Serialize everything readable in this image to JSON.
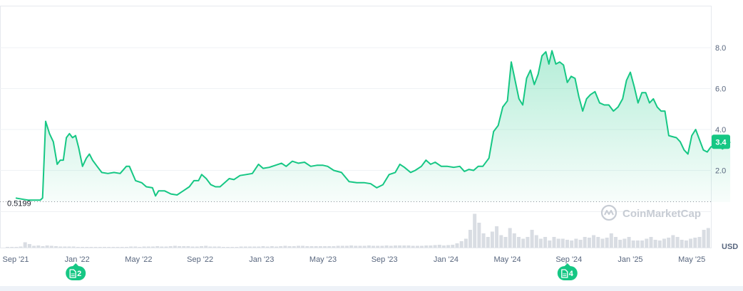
{
  "chart_data": {
    "type": "area",
    "price_baseline_label": "0.5199",
    "current_value_label": "3.4",
    "current_value": 3.4,
    "y_ticks": [
      {
        "value": 2,
        "label": "2.0"
      },
      {
        "value": 4,
        "label": "4.0"
      },
      {
        "value": 6,
        "label": "6.0"
      },
      {
        "value": 8,
        "label": "8.0"
      }
    ],
    "ylim": [
      0,
      10
    ],
    "x_ticks": [
      "Sep '21",
      "Jan '22",
      "May '22",
      "Sep '22",
      "Jan '23",
      "May '23",
      "Sep '23",
      "Jan '24",
      "May '24",
      "Sep '24",
      "Jan '25",
      "May '25"
    ],
    "x_tick_month_index": [
      0,
      4,
      8,
      12,
      16,
      20,
      24,
      28,
      32,
      36,
      40,
      44
    ],
    "x_start_date": "2021-09-01",
    "currency_label": "USD",
    "watermark": "CoinMarketCap",
    "line_color": "#16c784",
    "area_color": "#16c784",
    "markers": [
      {
        "month_index": 4,
        "label": "2",
        "icon": "document-icon"
      },
      {
        "month_index": 36,
        "label": "4",
        "icon": "document-icon"
      }
    ],
    "series": [
      {
        "points": [
          [
            0.0,
            0.65
          ],
          [
            0.4,
            0.6
          ],
          [
            0.8,
            0.55
          ],
          [
            1.2,
            0.55
          ],
          [
            1.6,
            0.55
          ],
          [
            1.75,
            0.65
          ],
          [
            1.95,
            4.4
          ],
          [
            2.2,
            3.8
          ],
          [
            2.45,
            3.4
          ],
          [
            2.7,
            2.3
          ],
          [
            2.9,
            2.5
          ],
          [
            3.1,
            2.5
          ],
          [
            3.3,
            3.6
          ],
          [
            3.5,
            3.8
          ],
          [
            3.7,
            3.6
          ],
          [
            3.9,
            3.7
          ],
          [
            4.1,
            3.1
          ],
          [
            4.35,
            2.2
          ],
          [
            4.6,
            2.6
          ],
          [
            4.8,
            2.8
          ],
          [
            5.0,
            2.5
          ],
          [
            5.3,
            2.2
          ],
          [
            5.6,
            1.9
          ],
          [
            6.0,
            1.85
          ],
          [
            6.4,
            1.9
          ],
          [
            6.8,
            1.85
          ],
          [
            7.2,
            2.2
          ],
          [
            7.4,
            2.2
          ],
          [
            7.8,
            1.5
          ],
          [
            8.2,
            1.4
          ],
          [
            8.5,
            1.2
          ],
          [
            8.9,
            1.15
          ],
          [
            9.1,
            0.75
          ],
          [
            9.3,
            1.0
          ],
          [
            9.7,
            1.0
          ],
          [
            10.1,
            0.85
          ],
          [
            10.5,
            0.8
          ],
          [
            10.9,
            1.0
          ],
          [
            11.3,
            1.2
          ],
          [
            11.6,
            1.5
          ],
          [
            11.9,
            1.5
          ],
          [
            12.1,
            1.8
          ],
          [
            12.4,
            1.6
          ],
          [
            12.7,
            1.3
          ],
          [
            13.0,
            1.2
          ],
          [
            13.3,
            1.2
          ],
          [
            13.6,
            1.4
          ],
          [
            13.9,
            1.6
          ],
          [
            14.2,
            1.55
          ],
          [
            14.6,
            1.75
          ],
          [
            15.0,
            1.8
          ],
          [
            15.4,
            1.85
          ],
          [
            15.8,
            2.3
          ],
          [
            16.1,
            2.1
          ],
          [
            16.5,
            2.15
          ],
          [
            16.9,
            2.25
          ],
          [
            17.3,
            2.35
          ],
          [
            17.6,
            2.2
          ],
          [
            18.0,
            2.45
          ],
          [
            18.4,
            2.35
          ],
          [
            18.8,
            2.4
          ],
          [
            19.2,
            2.2
          ],
          [
            19.6,
            2.25
          ],
          [
            20.0,
            2.25
          ],
          [
            20.3,
            2.2
          ],
          [
            20.7,
            2.0
          ],
          [
            21.2,
            1.9
          ],
          [
            21.7,
            1.45
          ],
          [
            22.2,
            1.4
          ],
          [
            22.7,
            1.4
          ],
          [
            23.1,
            1.35
          ],
          [
            23.5,
            1.15
          ],
          [
            23.9,
            1.3
          ],
          [
            24.3,
            1.8
          ],
          [
            24.7,
            1.9
          ],
          [
            25.0,
            2.3
          ],
          [
            25.3,
            2.15
          ],
          [
            25.7,
            1.9
          ],
          [
            26.0,
            2.0
          ],
          [
            26.4,
            2.2
          ],
          [
            26.7,
            2.5
          ],
          [
            27.0,
            2.3
          ],
          [
            27.3,
            2.4
          ],
          [
            27.7,
            2.2
          ],
          [
            28.1,
            2.2
          ],
          [
            28.5,
            2.15
          ],
          [
            28.9,
            2.2
          ],
          [
            29.2,
            1.95
          ],
          [
            29.5,
            2.05
          ],
          [
            29.8,
            2.0
          ],
          [
            30.1,
            2.2
          ],
          [
            30.4,
            2.2
          ],
          [
            30.8,
            2.6
          ],
          [
            31.1,
            3.9
          ],
          [
            31.4,
            4.2
          ],
          [
            31.7,
            5.1
          ],
          [
            32.0,
            5.4
          ],
          [
            32.25,
            7.3
          ],
          [
            32.5,
            6.4
          ],
          [
            32.75,
            5.5
          ],
          [
            33.0,
            5.2
          ],
          [
            33.25,
            6.5
          ],
          [
            33.5,
            6.9
          ],
          [
            33.75,
            6.2
          ],
          [
            34.0,
            6.7
          ],
          [
            34.25,
            7.6
          ],
          [
            34.5,
            7.8
          ],
          [
            34.7,
            7.2
          ],
          [
            34.9,
            7.85
          ],
          [
            35.15,
            7.2
          ],
          [
            35.4,
            7.3
          ],
          [
            35.65,
            7.15
          ],
          [
            35.9,
            6.3
          ],
          [
            36.15,
            6.6
          ],
          [
            36.4,
            6.5
          ],
          [
            36.65,
            5.6
          ],
          [
            36.9,
            4.9
          ],
          [
            37.15,
            5.5
          ],
          [
            37.4,
            5.7
          ],
          [
            37.7,
            5.85
          ],
          [
            38.0,
            5.3
          ],
          [
            38.3,
            5.2
          ],
          [
            38.6,
            5.2
          ],
          [
            38.9,
            4.9
          ],
          [
            39.2,
            5.1
          ],
          [
            39.5,
            5.5
          ],
          [
            39.75,
            6.4
          ],
          [
            40.0,
            6.8
          ],
          [
            40.25,
            6.1
          ],
          [
            40.5,
            5.3
          ],
          [
            40.75,
            5.8
          ],
          [
            41.0,
            5.8
          ],
          [
            41.25,
            5.3
          ],
          [
            41.5,
            5.5
          ],
          [
            41.75,
            5.1
          ],
          [
            42.0,
            4.9
          ],
          [
            42.25,
            4.9
          ],
          [
            42.5,
            3.7
          ],
          [
            42.75,
            3.65
          ],
          [
            43.0,
            3.6
          ],
          [
            43.25,
            3.4
          ],
          [
            43.5,
            3.0
          ],
          [
            43.75,
            2.8
          ],
          [
            44.0,
            3.7
          ],
          [
            44.25,
            4.0
          ],
          [
            44.5,
            3.5
          ],
          [
            44.75,
            3.0
          ],
          [
            45.0,
            2.9
          ],
          [
            45.25,
            3.15
          ],
          [
            45.5,
            3.2
          ],
          [
            45.75,
            3.2
          ],
          [
            46.0,
            3.05
          ],
          [
            46.25,
            3.2
          ],
          [
            46.5,
            3.4
          ]
        ]
      }
    ],
    "volume": [
      0.02,
      0.02,
      0.02,
      0.03,
      0.15,
      0.1,
      0.05,
      0.06,
      0.04,
      0.06,
      0.05,
      0.04,
      0.03,
      0.03,
      0.03,
      0.03,
      0.02,
      0.02,
      0.02,
      0.02,
      0.02,
      0.02,
      0.02,
      0.02,
      0.02,
      0.02,
      0.02,
      0.02,
      0.03,
      0.03,
      0.02,
      0.03,
      0.03,
      0.03,
      0.04,
      0.03,
      0.03,
      0.04,
      0.05,
      0.04,
      0.04,
      0.04,
      0.03,
      0.03,
      0.04,
      0.05,
      0.03,
      0.03,
      0.03,
      0.02,
      0.02,
      0.02,
      0.02,
      0.03,
      0.03,
      0.03,
      0.03,
      0.03,
      0.04,
      0.03,
      0.04,
      0.03,
      0.04,
      0.05,
      0.04,
      0.04,
      0.05,
      0.05,
      0.04,
      0.04,
      0.04,
      0.04,
      0.04,
      0.04,
      0.04,
      0.05,
      0.05,
      0.05,
      0.06,
      0.05,
      0.05,
      0.05,
      0.06,
      0.05,
      0.05,
      0.05,
      0.06,
      0.05,
      0.06,
      0.06,
      0.06,
      0.06,
      0.05,
      0.05,
      0.05,
      0.06,
      0.06,
      0.07,
      0.08,
      0.06,
      0.07,
      0.08,
      0.12,
      0.18,
      0.25,
      0.5,
      0.95,
      0.7,
      0.4,
      0.3,
      0.45,
      0.6,
      0.35,
      0.3,
      0.55,
      0.4,
      0.3,
      0.25,
      0.3,
      0.5,
      0.35,
      0.25,
      0.3,
      0.2,
      0.3,
      0.25,
      0.25,
      0.22,
      0.2,
      0.25,
      0.22,
      0.3,
      0.28,
      0.35,
      0.3,
      0.25,
      0.28,
      0.4,
      0.3,
      0.22,
      0.25,
      0.3,
      0.2,
      0.2,
      0.2,
      0.25,
      0.3,
      0.22,
      0.2,
      0.25,
      0.28,
      0.35,
      0.3,
      0.22,
      0.2,
      0.25,
      0.28,
      0.3,
      0.5,
      0.55
    ]
  }
}
